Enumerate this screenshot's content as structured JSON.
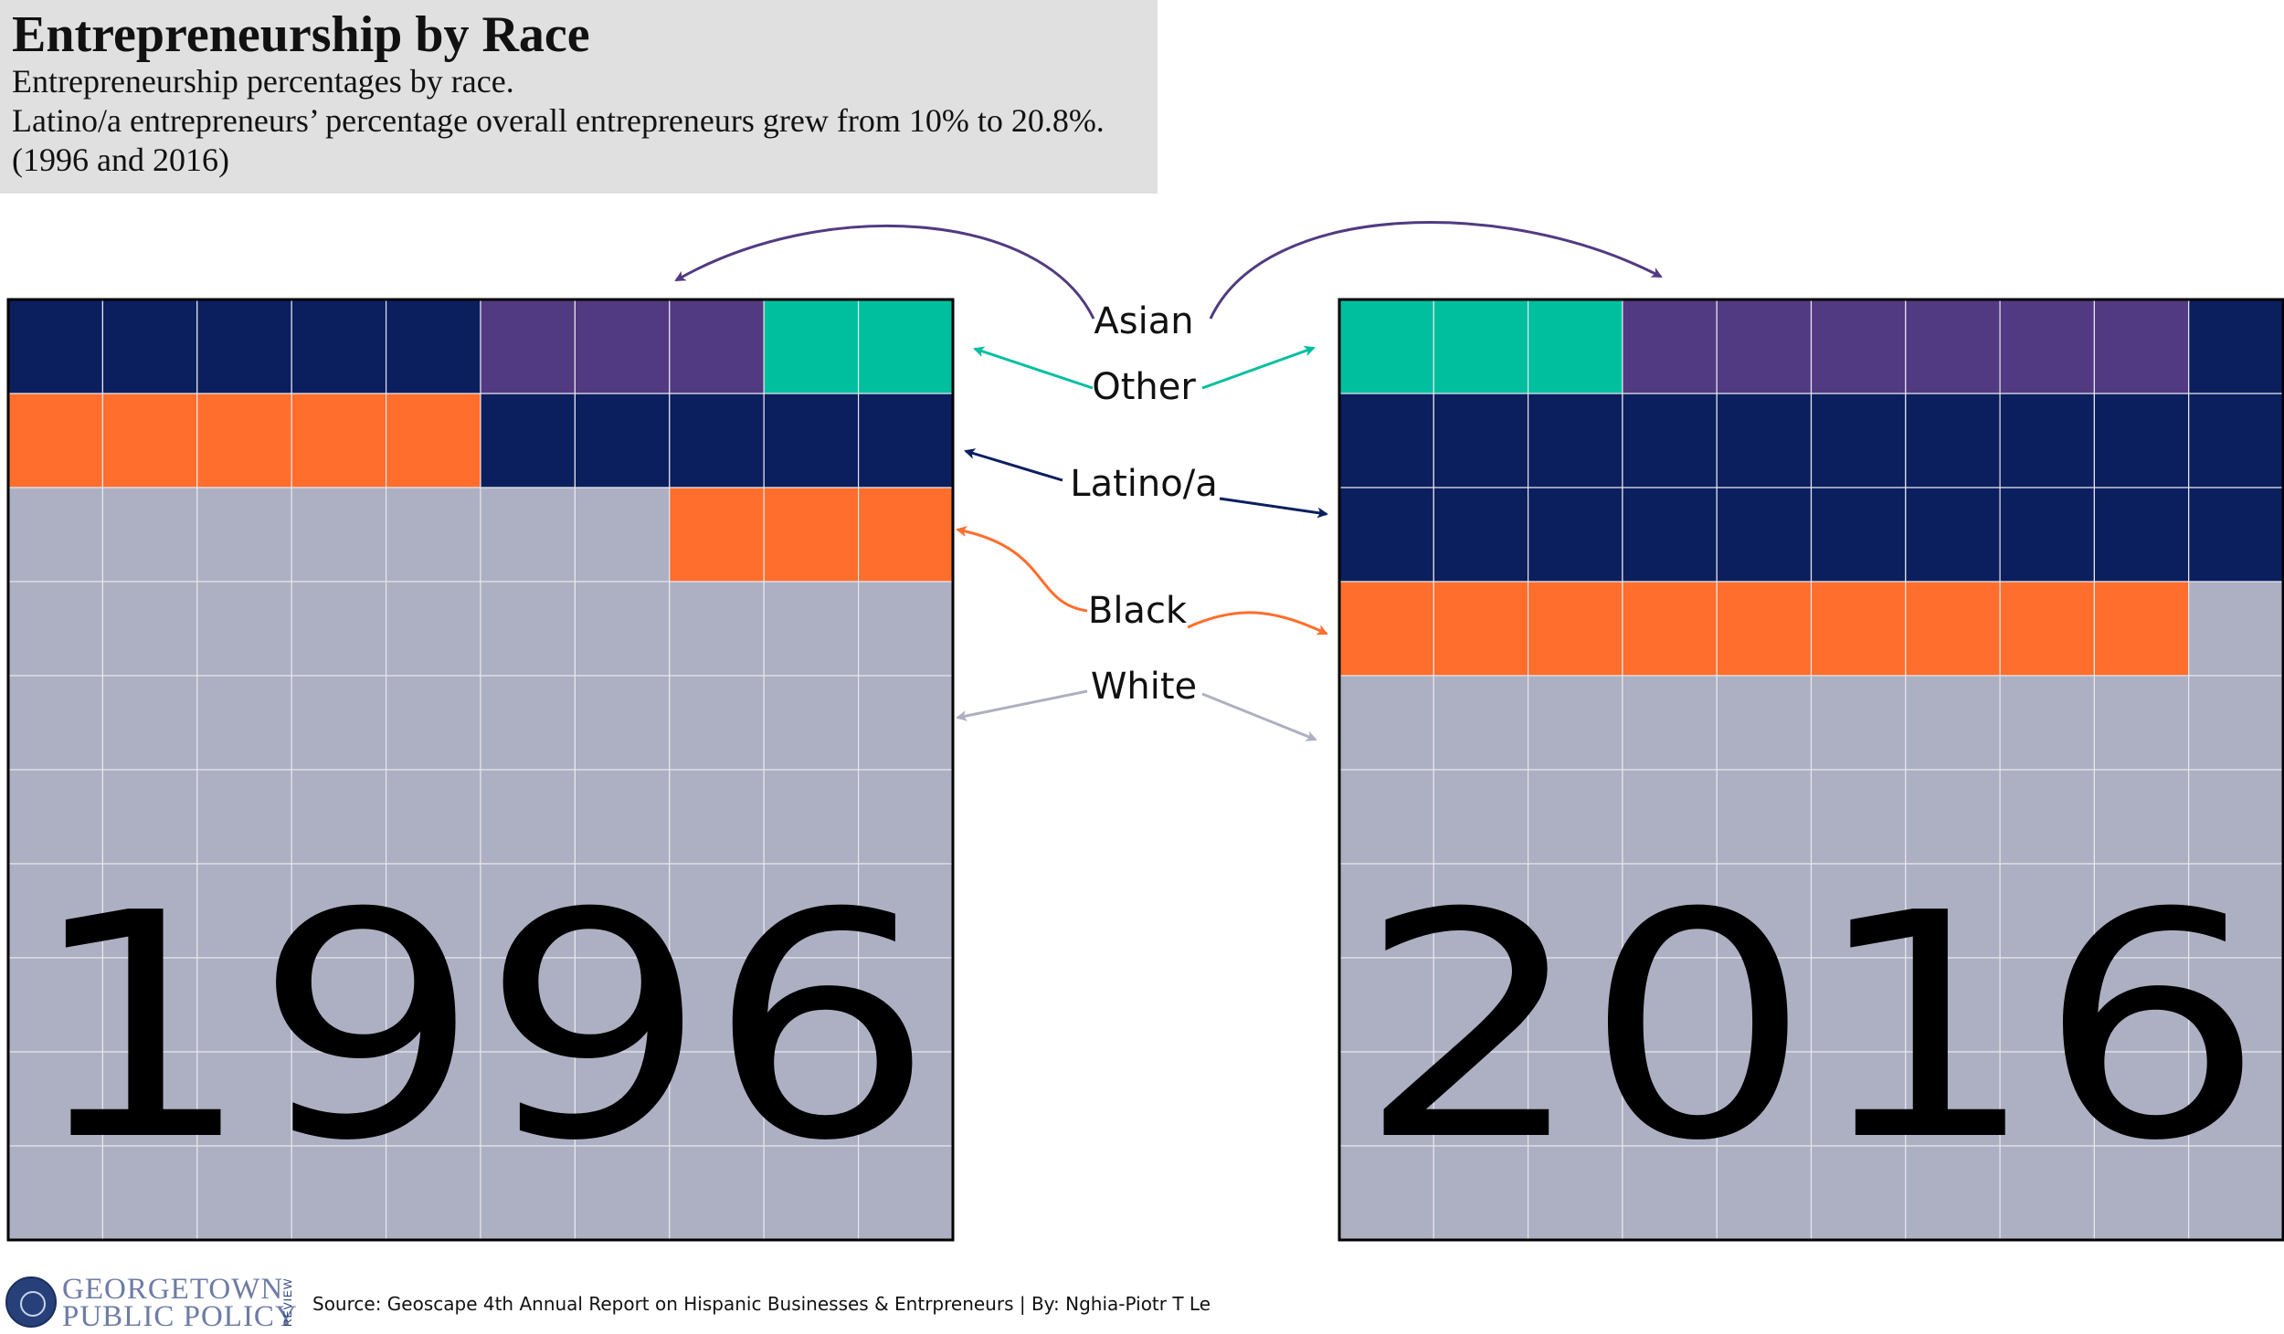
{
  "title": "Entrepreneurship by Race",
  "subtitle_lines": [
    "Entrepreneurship percentages by race.",
    "Latino/a entrepreneurs’ percentage overall entrepreneurs grew from 10% to 20.8%.",
    "(1996 and 2016)"
  ],
  "footer": {
    "source": "Source: Geoscape 4th Annual Report on Hispanic Businesses & Entrpreneurs | By: Nghia-Piotr T Le"
  },
  "logo": {
    "line1": "GEORGETOWN",
    "line2": "PUBLIC POLICY",
    "side_text": "REVIEW"
  },
  "colors": {
    "Asian": "#523a82",
    "Other": "#00bf9f",
    "Latino/a": "#0b1f5e",
    "Black": "#ff6e2c",
    "White": "#adb0c2"
  },
  "chart_data": {
    "type": "waffle",
    "grid": {
      "columns": 10,
      "rows": 10,
      "unit": "percent"
    },
    "categories": [
      "Asian",
      "Other",
      "Latino/a",
      "Black",
      "White"
    ],
    "legend_labels": [
      "Asian",
      "Other",
      "Latino/a",
      "Black",
      "White"
    ],
    "panels": [
      {
        "label": "1996",
        "cells": [
          [
            "Latino/a",
            "Latino/a",
            "Latino/a",
            "Latino/a",
            "Latino/a",
            "Asian",
            "Asian",
            "Asian",
            "Other",
            "Other"
          ],
          [
            "Black",
            "Black",
            "Black",
            "Black",
            "Black",
            "Latino/a",
            "Latino/a",
            "Latino/a",
            "Latino/a",
            "Latino/a"
          ],
          [
            "White",
            "White",
            "White",
            "White",
            "White",
            "White",
            "White",
            "Black",
            "Black",
            "Black"
          ],
          [
            "White",
            "White",
            "White",
            "White",
            "White",
            "White",
            "White",
            "White",
            "White",
            "White"
          ],
          [
            "White",
            "White",
            "White",
            "White",
            "White",
            "White",
            "White",
            "White",
            "White",
            "White"
          ],
          [
            "White",
            "White",
            "White",
            "White",
            "White",
            "White",
            "White",
            "White",
            "White",
            "White"
          ],
          [
            "White",
            "White",
            "White",
            "White",
            "White",
            "White",
            "White",
            "White",
            "White",
            "White"
          ],
          [
            "White",
            "White",
            "White",
            "White",
            "White",
            "White",
            "White",
            "White",
            "White",
            "White"
          ],
          [
            "White",
            "White",
            "White",
            "White",
            "White",
            "White",
            "White",
            "White",
            "White",
            "White"
          ],
          [
            "White",
            "White",
            "White",
            "White",
            "White",
            "White",
            "White",
            "White",
            "White",
            "White"
          ]
        ]
      },
      {
        "label": "2016",
        "cells": [
          [
            "Other",
            "Other",
            "Other",
            "Asian",
            "Asian",
            "Asian",
            "Asian",
            "Asian",
            "Asian",
            "Latino/a"
          ],
          [
            "Latino/a",
            "Latino/a",
            "Latino/a",
            "Latino/a",
            "Latino/a",
            "Latino/a",
            "Latino/a",
            "Latino/a",
            "Latino/a",
            "Latino/a"
          ],
          [
            "Latino/a",
            "Latino/a",
            "Latino/a",
            "Latino/a",
            "Latino/a",
            "Latino/a",
            "Latino/a",
            "Latino/a",
            "Latino/a",
            "Latino/a"
          ],
          [
            "Black",
            "Black",
            "Black",
            "Black",
            "Black",
            "Black",
            "Black",
            "Black",
            "Black",
            "White"
          ],
          [
            "White",
            "White",
            "White",
            "White",
            "White",
            "White",
            "White",
            "White",
            "White",
            "White"
          ],
          [
            "White",
            "White",
            "White",
            "White",
            "White",
            "White",
            "White",
            "White",
            "White",
            "White"
          ],
          [
            "White",
            "White",
            "White",
            "White",
            "White",
            "White",
            "White",
            "White",
            "White",
            "White"
          ],
          [
            "White",
            "White",
            "White",
            "White",
            "White",
            "White",
            "White",
            "White",
            "White",
            "White"
          ],
          [
            "White",
            "White",
            "White",
            "White",
            "White",
            "White",
            "White",
            "White",
            "White",
            "White"
          ],
          [
            "White",
            "White",
            "White",
            "White",
            "White",
            "White",
            "White",
            "White",
            "White",
            "White"
          ]
        ]
      }
    ]
  }
}
